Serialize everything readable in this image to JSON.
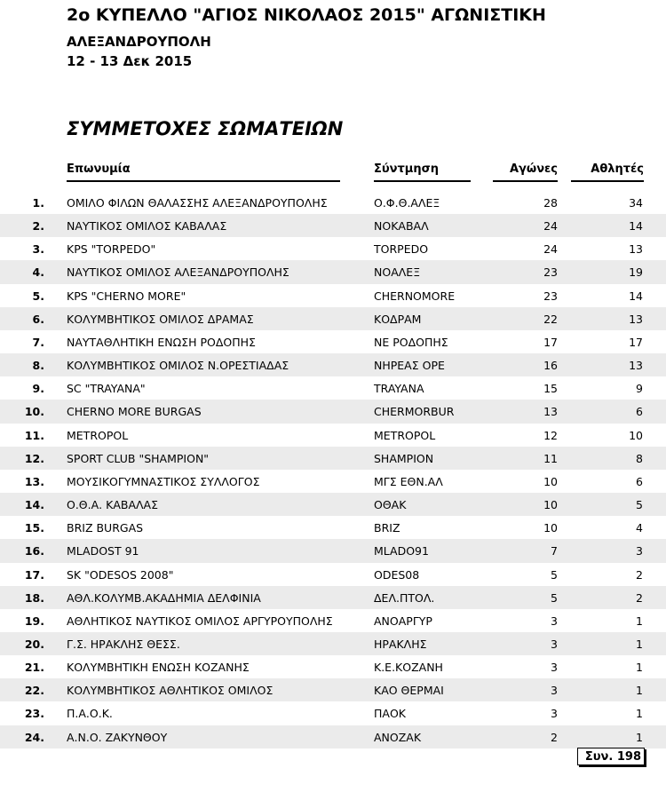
{
  "header": {
    "title": "2ο ΚΥΠΕΛΛΟ \"ΑΓΙΟΣ ΝΙΚΟΛΑΟΣ 2015\" ΑΓΩΝΙΣΤΙΚΗ",
    "city": "ΑΛΕΞΑΝΔΡΟΥΠΟΛΗ",
    "dates": "12 - 13 Δεκ 2015",
    "section": "ΣΥΜΜΕΤΟΧΕΣ ΣΩΜΑΤΕΙΩΝ"
  },
  "columns": {
    "name": "Επωνυμία",
    "abbr": "Σύντμηση",
    "games": "Αγώνες",
    "athletes": "Αθλητές"
  },
  "rows": [
    {
      "num": "1.",
      "name": "ΟΜΙΛΟ ΦΙΛΩΝ ΘΑΛΑΣΣΗΣ ΑΛΕΞΑΝΔΡΟΥΠΟΛΗΣ",
      "abbr": "Ο.Φ.Θ.ΑΛΕΞ",
      "games": "28",
      "athletes": "34"
    },
    {
      "num": "2.",
      "name": "ΝΑΥΤΙΚΟΣ ΟΜΙΛΟΣ ΚΑΒΑΛΑΣ",
      "abbr": "ΝΟΚΑΒΑΛ",
      "games": "24",
      "athletes": "14"
    },
    {
      "num": "3.",
      "name": "KPS \"TORPEDO\"",
      "abbr": "TORPEDO",
      "games": "24",
      "athletes": "13"
    },
    {
      "num": "4.",
      "name": "ΝΑΥΤΙΚΟΣ ΟΜΙΛΟΣ ΑΛΕΞΑΝΔΡΟΥΠΟΛΗΣ",
      "abbr": "ΝΟΑΛΕΞ",
      "games": "23",
      "athletes": "19"
    },
    {
      "num": "5.",
      "name": "KPS \"CHERNO MORE\"",
      "abbr": "CHERNOMORE",
      "games": "23",
      "athletes": "14"
    },
    {
      "num": "6.",
      "name": "ΚΟΛΥΜΒΗΤΙΚΟΣ ΟΜΙΛΟΣ ΔΡΑΜΑΣ",
      "abbr": "ΚΟΔΡΑΜ",
      "games": "22",
      "athletes": "13"
    },
    {
      "num": "7.",
      "name": "ΝΑΥΤΑΘΛΗΤΙΚΗ ΕΝΩΣΗ ΡΟΔΟΠΗΣ",
      "abbr": "ΝΕ ΡΟΔΟΠΗΣ",
      "games": "17",
      "athletes": "17"
    },
    {
      "num": "8.",
      "name": "ΚΟΛΥΜΒΗΤΙΚΟΣ ΟΜΙΛΟΣ Ν.ΟΡΕΣΤΙΑΔΑΣ",
      "abbr": "ΝΗΡΕΑΣ ΟΡΕ",
      "games": "16",
      "athletes": "13"
    },
    {
      "num": "9.",
      "name": "SC \"TRAYANA\"",
      "abbr": "TRAYANA",
      "games": "15",
      "athletes": "9"
    },
    {
      "num": "10.",
      "name": "CHERNO MORE BURGAS",
      "abbr": "CHERMORBUR",
      "games": "13",
      "athletes": "6"
    },
    {
      "num": "11.",
      "name": "METROPOL",
      "abbr": "METROPOL",
      "games": "12",
      "athletes": "10"
    },
    {
      "num": "12.",
      "name": "SPORT CLUB \"SHAMPION\"",
      "abbr": "SHAMPION",
      "games": "11",
      "athletes": "8"
    },
    {
      "num": "13.",
      "name": "ΜΟΥΣΙΚΟΓΥΜΝΑΣΤΙΚΟΣ ΣΥΛΛΟΓΟΣ",
      "abbr": "ΜΓΣ ΕΘΝ.ΑΛ",
      "games": "10",
      "athletes": "6"
    },
    {
      "num": "14.",
      "name": "Ο.Θ.Α. ΚΑΒΑΛΑΣ",
      "abbr": "ΟΘΑΚ",
      "games": "10",
      "athletes": "5"
    },
    {
      "num": "15.",
      "name": "BRIZ BURGAS",
      "abbr": "BRIZ",
      "games": "10",
      "athletes": "4"
    },
    {
      "num": "16.",
      "name": "MLADOST 91",
      "abbr": "MLADO91",
      "games": "7",
      "athletes": "3"
    },
    {
      "num": "17.",
      "name": "SK \"ODESOS 2008\"",
      "abbr": "ODES08",
      "games": "5",
      "athletes": "2"
    },
    {
      "num": "18.",
      "name": "ΑΘΛ.ΚΟΛΥΜΒ.ΑΚΑΔΗΜΙΑ ΔΕΛΦΙΝΙΑ",
      "abbr": "ΔΕΛ.ΠΤΟΛ.",
      "games": "5",
      "athletes": "2"
    },
    {
      "num": "19.",
      "name": "ΑΘΛΗΤΙΚΟΣ ΝΑΥΤΙΚΟΣ ΟΜΙΛΟΣ ΑΡΓΥΡΟΥΠΟΛΗΣ",
      "abbr": "ΑΝΟΑΡΓΥΡ",
      "games": "3",
      "athletes": "1"
    },
    {
      "num": "20.",
      "name": "Γ.Σ. ΗΡΑΚΛΗΣ ΘΕΣΣ.",
      "abbr": "ΗΡΑΚΛΗΣ",
      "games": "3",
      "athletes": "1"
    },
    {
      "num": "21.",
      "name": "ΚΟΛΥΜΒΗΤΙΚΗ ΕΝΩΣΗ ΚΟΖΑΝΗΣ",
      "abbr": "Κ.Ε.ΚΟΖΑΝΗ",
      "games": "3",
      "athletes": "1"
    },
    {
      "num": "22.",
      "name": "ΚΟΛΥΜΒΗΤΙΚΟΣ ΑΘΛΗΤΙΚΟΣ ΟΜΙΛΟΣ",
      "abbr": "ΚΑΟ ΘΕΡΜΑΙ",
      "games": "3",
      "athletes": "1"
    },
    {
      "num": "23.",
      "name": "Π.Α.Ο.Κ.",
      "abbr": "ΠΑΟΚ",
      "games": "3",
      "athletes": "1"
    },
    {
      "num": "24.",
      "name": "Α.Ν.Ο. ΖΑΚΥΝΘΟΥ",
      "abbr": "ΑΝΟΖΑΚ",
      "games": "2",
      "athletes": "1"
    }
  ],
  "total": "Συν. 198"
}
